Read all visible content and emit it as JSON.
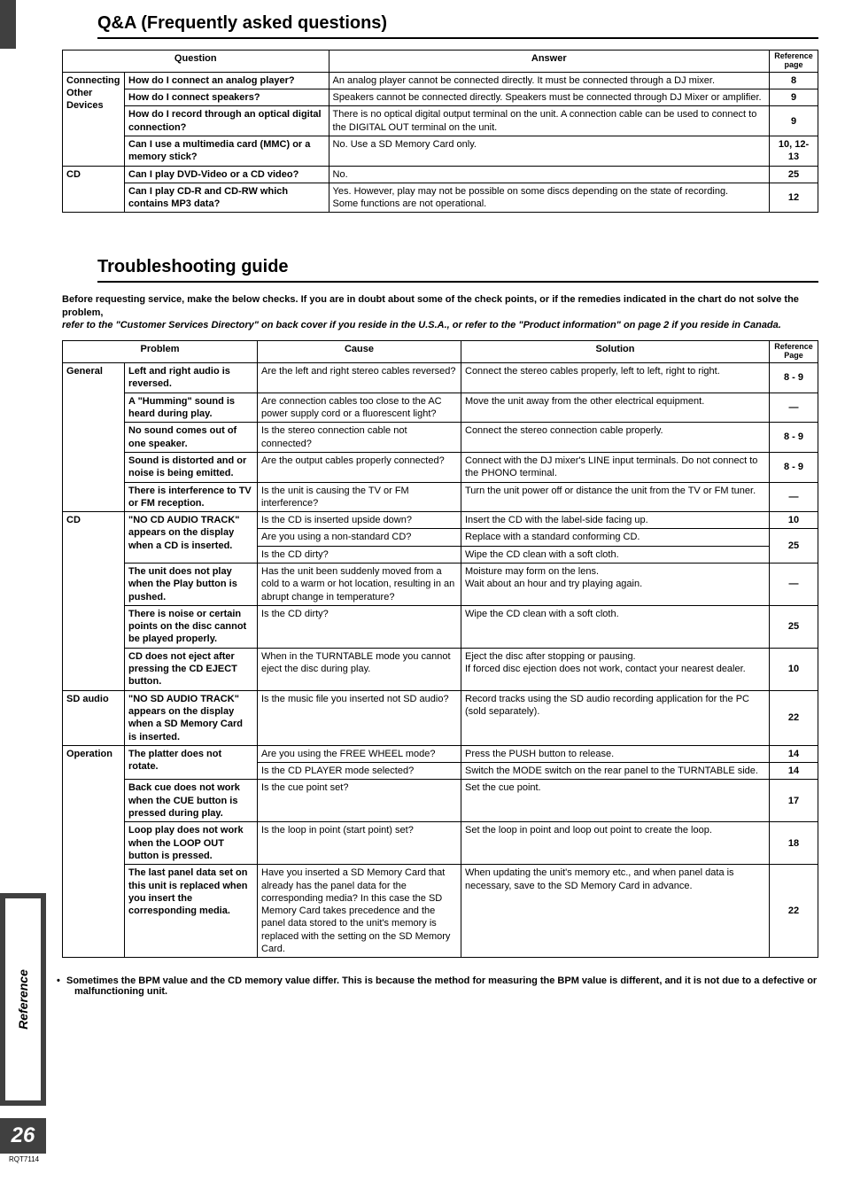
{
  "side": {
    "label": "Reference",
    "page_num": "26",
    "code": "RQT7114"
  },
  "qa": {
    "title": "Q&A (Frequently asked questions)",
    "headers": {
      "question": "Question",
      "answer": "Answer",
      "ref": "Reference page"
    },
    "groups": [
      {
        "category": "Connecting Other Devices",
        "rows": [
          {
            "q": "How do I connect an analog player?",
            "a": "An analog player cannot be connected directly. It must be connected through a DJ mixer.",
            "ref": "8"
          },
          {
            "q": "How do I connect speakers?",
            "a": "Speakers cannot be connected directly. Speakers must be connected through DJ Mixer or amplifier.",
            "ref": "9"
          },
          {
            "q": "How do I record through an optical digital connection?",
            "a": "There is no optical digital output terminal on the unit. A connection cable can be used to connect to the DIGITAL OUT terminal on the unit.",
            "ref": "9"
          },
          {
            "q": "Can I use a multimedia card (MMC) or a memory stick?",
            "a": "No. Use a SD Memory Card only.",
            "ref": "10, 12-13"
          }
        ]
      },
      {
        "category": "CD",
        "rows": [
          {
            "q": "Can I play DVD-Video or a CD video?",
            "a": "No.",
            "ref": "25"
          },
          {
            "q": "Can I play CD-R and CD-RW which contains MP3 data?",
            "a": "Yes. However, play may not be possible on some discs depending on the state of recording.\nSome functions are not operational.",
            "ref": "12"
          }
        ]
      }
    ]
  },
  "ts": {
    "title": "Troubleshooting guide",
    "intro1": "Before requesting service, make the below checks. If you are in doubt about some of the check points, or if the remedies indicated in the chart do not solve the problem,",
    "intro2": "refer to the \"Customer Services Directory\" on back cover if you reside in the U.S.A., or refer to the \"Product information\" on page 2 if you reside in Canada.",
    "headers": {
      "problem": "Problem",
      "cause": "Cause",
      "solution": "Solution",
      "ref": "Reference Page"
    },
    "groups": [
      {
        "category": "General",
        "rows": [
          {
            "p": "Left and right audio is reversed.",
            "c": "Are the left and right stereo cables reversed?",
            "s": "Connect the stereo cables properly, left to left, right to right.",
            "ref": "8 - 9"
          },
          {
            "p": "A \"Humming\" sound is heard during play.",
            "c": "Are connection cables too close to the AC power supply cord or a fluorescent light?",
            "s": "Move the unit away from the other electrical equipment.",
            "ref": "—"
          },
          {
            "p": "No sound comes out of one speaker.",
            "c": "Is the stereo connection cable not connected?",
            "s": "Connect the stereo connection cable properly.",
            "ref": "8 - 9"
          },
          {
            "p": "Sound is distorted and or noise is being emitted.",
            "c": "Are the output cables properly connected?",
            "s": "Connect with the DJ mixer's LINE input terminals. Do not connect to the PHONO terminal.",
            "ref": "8 - 9"
          },
          {
            "p": "There is interference to TV or FM reception.",
            "c": "Is the unit is causing the TV or FM interference?",
            "s": "Turn the unit power off or distance the unit from the TV or FM tuner.",
            "ref": "—"
          }
        ]
      },
      {
        "category": "CD",
        "rows": [
          {
            "p": "\"NO CD AUDIO TRACK\" appears on the display when a CD is inserted.",
            "c_multi": [
              {
                "c": "Is the CD is inserted upside down?",
                "s": "Insert the CD with the label-side facing up.",
                "ref": "10"
              },
              {
                "c": "Are you using a non-standard CD?",
                "s": "Replace with a standard conforming CD.",
                "ref": "25",
                "merge_ref_below": true
              },
              {
                "c": "Is the CD dirty?",
                "s": "Wipe the CD clean with a soft cloth."
              }
            ]
          },
          {
            "p": "The unit does not play when the Play button is pushed.",
            "c": "Has the unit been suddenly moved from a cold to a warm or hot location, resulting in an abrupt change in temperature?",
            "s": "Moisture may form on the lens.\nWait about an hour and try playing again.",
            "ref": "—"
          },
          {
            "p": "There is noise or certain points on the disc cannot be played properly.",
            "c": "Is the CD dirty?",
            "s": "Wipe the CD clean with a soft cloth.",
            "ref": "25"
          },
          {
            "p": "CD does not eject after pressing the CD EJECT button.",
            "c": "When in the TURNTABLE mode you cannot eject the disc during play.",
            "s": "Eject the disc after stopping or pausing.\nIf forced disc ejection does not work, contact your nearest dealer.",
            "ref": "10"
          }
        ]
      },
      {
        "category": "SD audio",
        "rows": [
          {
            "p": "\"NO SD AUDIO TRACK\" appears on the display when a SD Memory Card is inserted.",
            "c": "Is the music file you inserted not SD audio?",
            "s": "Record tracks using the SD audio recording application for the PC (sold separately).",
            "ref": "22"
          }
        ]
      },
      {
        "category": "Operation",
        "rows": [
          {
            "p": "The platter does not rotate.",
            "c_multi": [
              {
                "c": "Are you using the FREE WHEEL mode?",
                "s": "Press the PUSH button to release.",
                "ref": "14"
              },
              {
                "c": "Is the CD PLAYER mode selected?",
                "s": "Switch the MODE switch on the rear panel to the TURNTABLE side.",
                "ref": "14"
              }
            ]
          },
          {
            "p": "Back cue does not work when the CUE button is pressed during play.",
            "c": "Is the cue point set?",
            "s": "Set the cue point.",
            "ref": "17"
          },
          {
            "p": "Loop play does not work when the LOOP OUT button is pressed.",
            "c": "Is the loop in point (start point) set?",
            "s": "Set the loop in point and loop out point to create the loop.",
            "ref": "18"
          },
          {
            "p": "The last panel data set on this unit is replaced when you insert the corresponding media.",
            "c": "Have you inserted a SD Memory Card that already has the panel data for the corresponding media? In this case the SD Memory Card takes precedence and the panel data stored to the unit's memory is replaced with the setting on the SD Memory Card.",
            "s": "When updating the unit's memory etc., and when panel data is necessary, save to the SD Memory Card in advance.",
            "ref": "22"
          }
        ]
      }
    ],
    "footnote": "Sometimes the BPM value and the CD memory value differ. This is because the method for measuring the BPM value is different, and it is not due to a defective or malfunctioning unit."
  }
}
